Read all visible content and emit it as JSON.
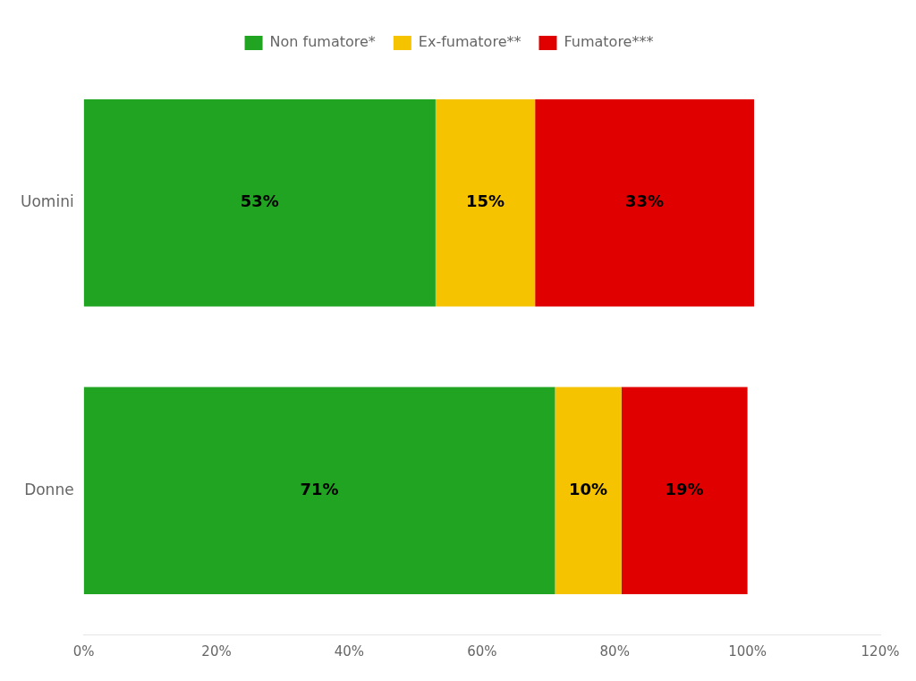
{
  "chart_data": {
    "type": "bar",
    "orientation": "horizontal",
    "stacked": true,
    "categories": [
      "Uomini",
      "Donne"
    ],
    "series": [
      {
        "name": "Non fumatore*",
        "color": "#21a421",
        "values": [
          53,
          71
        ],
        "value_labels": [
          "53%",
          "71%"
        ]
      },
      {
        "name": "Ex-fumatore**",
        "color": "#f5c300",
        "values": [
          15,
          10
        ],
        "value_labels": [
          "15%",
          "10%"
        ]
      },
      {
        "name": "Fumatore***",
        "color": "#e00000",
        "values": [
          33,
          19
        ],
        "value_labels": [
          "33%",
          "19%"
        ]
      }
    ],
    "xlim": [
      0,
      120
    ],
    "xticks": [
      {
        "value": 0,
        "label": "0%"
      },
      {
        "value": 20,
        "label": "20%"
      },
      {
        "value": 40,
        "label": "40%"
      },
      {
        "value": 60,
        "label": "60%"
      },
      {
        "value": 80,
        "label": "80%"
      },
      {
        "value": 100,
        "label": "100%"
      },
      {
        "value": 120,
        "label": "120%"
      }
    ],
    "grid": false,
    "legend": "top",
    "data_labels": true
  }
}
